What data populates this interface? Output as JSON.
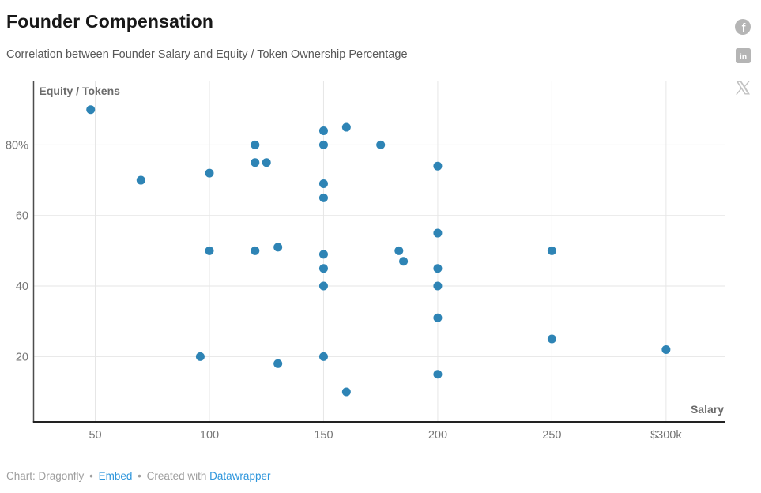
{
  "header": {
    "title": "Founder Compensation",
    "subtitle": "Correlation between Founder Salary and Equity / Token Ownership Percentage"
  },
  "share": {
    "facebook_label": "f",
    "linkedin_label": "in",
    "icon_color": "#b5b5b5",
    "x_icon_color": "#c2c2c2"
  },
  "chart_data": {
    "type": "scatter",
    "title": "Founder Compensation",
    "subtitle": "Correlation between Founder Salary and Equity / Token Ownership Percentage",
    "xlabel": "Salary",
    "ylabel": "Equity / Tokens",
    "xlim": [
      23,
      326
    ],
    "ylim": [
      1.5,
      98
    ],
    "grid": true,
    "x_ticks": [
      {
        "value": 50,
        "label": "50"
      },
      {
        "value": 100,
        "label": "100"
      },
      {
        "value": 150,
        "label": "150"
      },
      {
        "value": 200,
        "label": "200"
      },
      {
        "value": 250,
        "label": "250"
      },
      {
        "value": 300,
        "label": "$300k"
      }
    ],
    "y_ticks": [
      {
        "value": 20,
        "label": "20"
      },
      {
        "value": 40,
        "label": "40"
      },
      {
        "value": 60,
        "label": "60"
      },
      {
        "value": 80,
        "label": "80%"
      }
    ],
    "colors": {
      "point": "#2e84b5",
      "grid": "#e6e6e6",
      "axis_y": "#4d4d4d",
      "axis_x": "#222222",
      "tick_label": "#767676",
      "axis_title": "#6b6b6b"
    },
    "points": [
      {
        "salary": 48,
        "equity": 90
      },
      {
        "salary": 70,
        "equity": 70
      },
      {
        "salary": 96,
        "equity": 20
      },
      {
        "salary": 100,
        "equity": 50
      },
      {
        "salary": 100,
        "equity": 72
      },
      {
        "salary": 120,
        "equity": 50
      },
      {
        "salary": 120,
        "equity": 75
      },
      {
        "salary": 120,
        "equity": 80
      },
      {
        "salary": 125,
        "equity": 75
      },
      {
        "salary": 130,
        "equity": 18
      },
      {
        "salary": 130,
        "equity": 51
      },
      {
        "salary": 150,
        "equity": 20
      },
      {
        "salary": 150,
        "equity": 40
      },
      {
        "salary": 150,
        "equity": 45
      },
      {
        "salary": 150,
        "equity": 49
      },
      {
        "salary": 150,
        "equity": 65
      },
      {
        "salary": 150,
        "equity": 69
      },
      {
        "salary": 150,
        "equity": 80
      },
      {
        "salary": 150,
        "equity": 84
      },
      {
        "salary": 160,
        "equity": 10
      },
      {
        "salary": 160,
        "equity": 85
      },
      {
        "salary": 175,
        "equity": 80
      },
      {
        "salary": 183,
        "equity": 50
      },
      {
        "salary": 185,
        "equity": 47
      },
      {
        "salary": 200,
        "equity": 15
      },
      {
        "salary": 200,
        "equity": 31
      },
      {
        "salary": 200,
        "equity": 40
      },
      {
        "salary": 200,
        "equity": 45
      },
      {
        "salary": 200,
        "equity": 55
      },
      {
        "salary": 200,
        "equity": 74
      },
      {
        "salary": 250,
        "equity": 25
      },
      {
        "salary": 250,
        "equity": 50
      },
      {
        "salary": 300,
        "equity": 22
      }
    ]
  },
  "footer": {
    "credit": "Chart: Dragonfly",
    "separator": "•",
    "embed_label": "Embed",
    "created_with": "Created with",
    "tool_label": "Datawrapper"
  }
}
